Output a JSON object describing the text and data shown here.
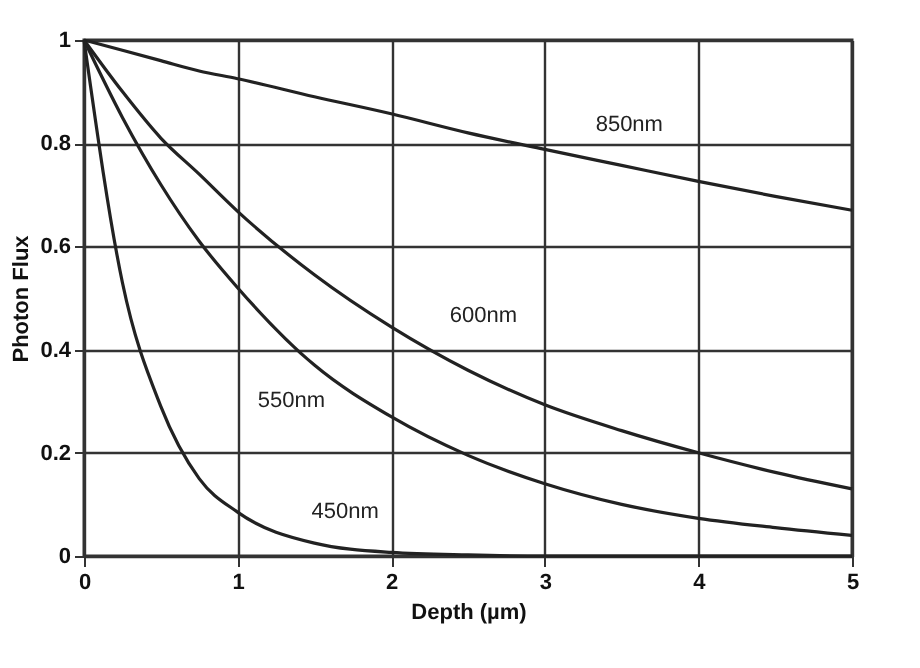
{
  "chart_data": {
    "type": "line",
    "xlabel": "Depth  (µm)",
    "ylabel": "Photon Flux",
    "x": [
      0,
      0.25,
      0.5,
      0.75,
      1,
      1.5,
      2,
      2.5,
      3,
      3.5,
      4,
      4.5,
      5
    ],
    "series": [
      {
        "name": "850nm",
        "color": "#222222",
        "values": [
          1,
          0.98,
          0.96,
          0.94,
          0.925,
          0.89,
          0.857,
          0.82,
          0.788,
          0.757,
          0.726,
          0.697,
          0.67
        ]
      },
      {
        "name": "600nm",
        "color": "#222222",
        "values": [
          1,
          0.9,
          0.81,
          0.74,
          0.668,
          0.545,
          0.444,
          0.36,
          0.293,
          0.243,
          0.2,
          0.162,
          0.13
        ]
      },
      {
        "name": "550nm",
        "color": "#222222",
        "values": [
          1,
          0.85,
          0.72,
          0.61,
          0.52,
          0.37,
          0.27,
          0.195,
          0.14,
          0.1,
          0.073,
          0.055,
          0.04
        ]
      },
      {
        "name": "450nm",
        "color": "#222222",
        "values": [
          1,
          0.53,
          0.29,
          0.15,
          0.085,
          0.025,
          0.007,
          0.002,
          0,
          0,
          0,
          0,
          0
        ]
      }
    ],
    "xlim": [
      0,
      5
    ],
    "xticks": [
      0,
      1,
      2,
      3,
      4,
      5
    ],
    "ylim": [
      0,
      1
    ],
    "yticks": [
      0,
      0.2,
      0.4,
      0.6,
      0.8,
      1
    ],
    "grid": true,
    "legend": false,
    "line_style": "solid",
    "marker": "none"
  }
}
